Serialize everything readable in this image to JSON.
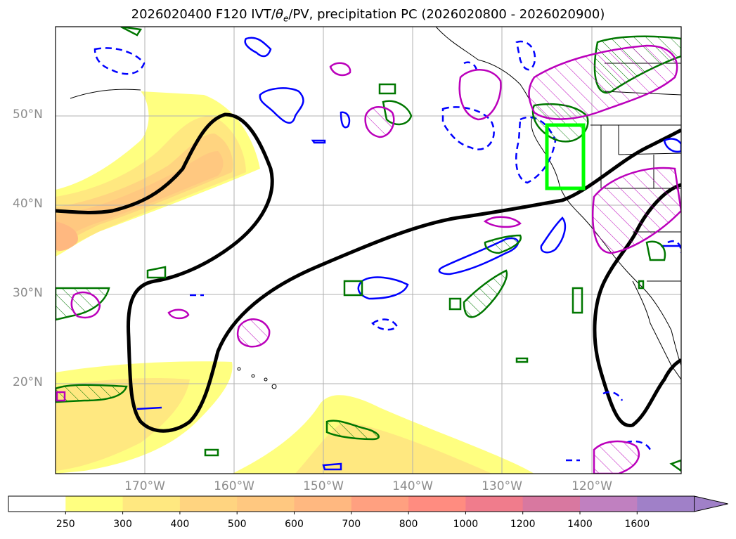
{
  "title_main": "2026020400 F120 IVT/",
  "title_sym": "θ",
  "title_sub": "e",
  "title_rest": "/PV, precipitation PC (2026020800 - 2026020900)",
  "lat_labels": [
    "50°N",
    "40°N",
    "30°N",
    "20°N"
  ],
  "lon_labels": [
    "170°W",
    "160°W",
    "150°W",
    "140°W",
    "130°W",
    "120°W"
  ],
  "colorbar": {
    "tick_labels": [
      "250",
      "300",
      "400",
      "500",
      "600",
      "700",
      "800",
      "1000",
      "1200",
      "1400",
      "1600"
    ],
    "colors": [
      "#ffffff",
      "#ffff80",
      "#ffe880",
      "#ffd480",
      "#ffc880",
      "#ffb880",
      "#ffa080",
      "#ff8c80",
      "#f07c8c",
      "#d878a0",
      "#c080c0",
      "#a080c8"
    ],
    "extend": "max"
  },
  "map": {
    "lat_range": [
      "10°N",
      "60°N"
    ],
    "lon_range": [
      "180°",
      "110°W"
    ],
    "grid": true,
    "highlight_box_color": "#00ff00",
    "contour_colors": {
      "thick": "#000000",
      "blue": "#0000ff",
      "green": "#007700",
      "magenta": "#bb00bb"
    }
  }
}
